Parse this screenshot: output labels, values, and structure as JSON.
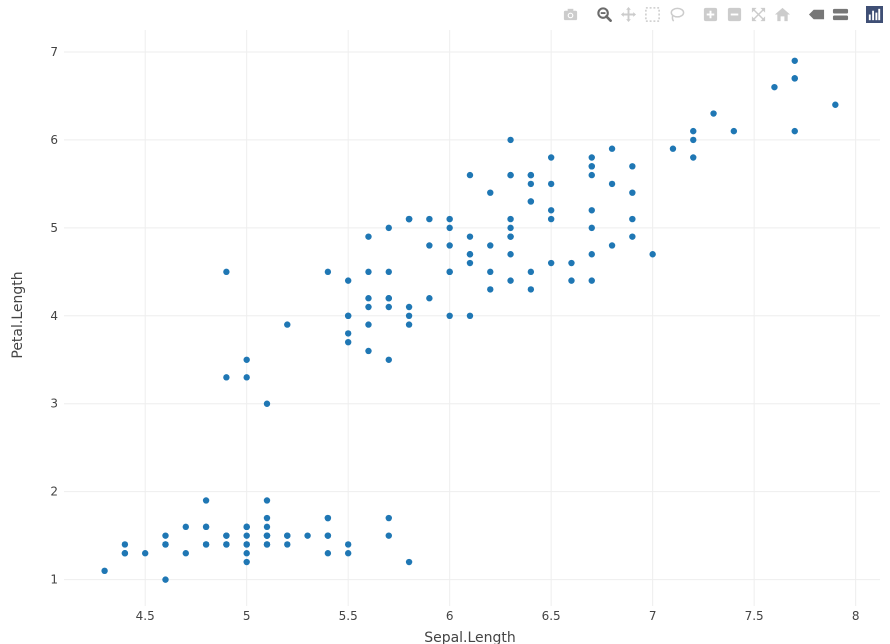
{
  "modebar": {
    "buttons": [
      {
        "name": "camera-icon",
        "color": "#cccccc"
      },
      {
        "name": "zoom-icon",
        "color": "#6b6b6b"
      },
      {
        "name": "pan-icon",
        "color": "#cccccc"
      },
      {
        "name": "box-select-icon",
        "color": "#cccccc"
      },
      {
        "name": "lasso-select-icon",
        "color": "#cccccc"
      },
      {
        "name": "zoom-in-icon",
        "color": "#cccccc"
      },
      {
        "name": "zoom-out-icon",
        "color": "#cccccc"
      },
      {
        "name": "autoscale-icon",
        "color": "#cccccc"
      },
      {
        "name": "reset-axes-icon",
        "color": "#cccccc"
      },
      {
        "name": "hover-closest-icon",
        "color": "#777777"
      },
      {
        "name": "hover-compare-icon",
        "color": "#777777"
      },
      {
        "name": "plotly-logo-icon",
        "color": "#3f4f75"
      }
    ]
  },
  "chart_data": {
    "type": "scatter",
    "xlabel": "Sepal.Length",
    "ylabel": "Petal.Length",
    "xlim": [
      4.1,
      8.12
    ],
    "ylim": [
      0.7,
      7.25
    ],
    "xticks": [
      4.5,
      5,
      5.5,
      6,
      6.5,
      7,
      7.5,
      8
    ],
    "yticks": [
      1,
      2,
      3,
      4,
      5,
      6,
      7
    ],
    "xtick_labels": [
      "4.5",
      "5",
      "5.5",
      "6",
      "6.5",
      "7",
      "7.5",
      "8"
    ],
    "ytick_labels": [
      "1",
      "2",
      "3",
      "4",
      "5",
      "6",
      "7"
    ],
    "grid": true,
    "marker_color": "#1f77b4",
    "x": [
      5.1,
      4.9,
      4.7,
      4.6,
      5.0,
      5.4,
      4.6,
      5.0,
      4.4,
      4.9,
      5.4,
      4.8,
      4.8,
      4.3,
      5.8,
      5.7,
      5.4,
      5.1,
      5.7,
      5.1,
      5.4,
      5.1,
      4.6,
      5.1,
      4.8,
      5.0,
      5.0,
      5.2,
      5.2,
      4.7,
      4.8,
      5.4,
      5.2,
      5.5,
      4.9,
      5.0,
      5.5,
      4.9,
      4.4,
      5.1,
      5.0,
      4.5,
      4.4,
      5.0,
      5.1,
      4.8,
      5.1,
      4.6,
      5.3,
      5.0,
      7.0,
      6.4,
      6.9,
      5.5,
      6.5,
      5.7,
      6.3,
      4.9,
      6.6,
      5.2,
      5.0,
      5.9,
      6.0,
      6.1,
      5.6,
      6.7,
      5.6,
      5.8,
      6.2,
      5.6,
      5.9,
      6.1,
      6.3,
      6.1,
      6.4,
      6.6,
      6.8,
      6.7,
      6.0,
      5.7,
      5.5,
      5.5,
      5.8,
      6.0,
      5.4,
      6.0,
      6.7,
      6.3,
      5.6,
      5.5,
      5.5,
      6.1,
      5.8,
      5.0,
      5.6,
      5.7,
      5.7,
      6.2,
      5.1,
      5.7,
      6.3,
      5.8,
      7.1,
      6.3,
      6.5,
      7.6,
      4.9,
      7.3,
      6.7,
      7.2,
      6.5,
      6.4,
      6.8,
      5.7,
      5.8,
      6.4,
      6.5,
      7.7,
      7.7,
      6.0,
      6.9,
      5.6,
      7.7,
      6.3,
      6.7,
      7.2,
      6.2,
      6.1,
      6.4,
      7.2,
      7.4,
      7.9,
      6.4,
      6.3,
      6.1,
      7.7,
      6.3,
      6.4,
      6.0,
      6.9,
      6.7,
      6.9,
      5.8,
      6.8,
      6.7,
      6.7,
      6.3,
      6.5,
      6.2,
      5.9
    ],
    "y": [
      1.4,
      1.4,
      1.3,
      1.5,
      1.4,
      1.7,
      1.4,
      1.5,
      1.4,
      1.5,
      1.5,
      1.6,
      1.4,
      1.1,
      1.2,
      1.5,
      1.3,
      1.4,
      1.7,
      1.5,
      1.7,
      1.5,
      1.0,
      1.7,
      1.9,
      1.6,
      1.6,
      1.5,
      1.4,
      1.6,
      1.6,
      1.5,
      1.5,
      1.4,
      1.5,
      1.2,
      1.3,
      1.4,
      1.3,
      1.5,
      1.3,
      1.3,
      1.3,
      1.6,
      1.9,
      1.4,
      1.6,
      1.4,
      1.5,
      1.4,
      4.7,
      4.5,
      4.9,
      4.0,
      4.6,
      4.5,
      4.7,
      3.3,
      4.6,
      3.9,
      3.5,
      4.2,
      4.0,
      4.7,
      3.6,
      4.4,
      4.5,
      4.1,
      4.5,
      3.9,
      4.8,
      4.0,
      4.9,
      4.7,
      4.3,
      4.4,
      4.8,
      5.0,
      4.5,
      3.5,
      3.8,
      3.7,
      3.9,
      5.1,
      4.5,
      4.5,
      4.7,
      4.4,
      4.1,
      4.0,
      4.4,
      4.6,
      4.0,
      3.3,
      4.2,
      4.2,
      4.2,
      4.3,
      3.0,
      4.1,
      6.0,
      5.1,
      5.9,
      5.6,
      5.8,
      6.6,
      4.5,
      6.3,
      5.8,
      6.1,
      5.1,
      5.3,
      5.5,
      5.0,
      5.1,
      5.3,
      5.5,
      6.7,
      6.9,
      5.0,
      5.7,
      4.9,
      6.7,
      4.9,
      5.7,
      6.0,
      4.8,
      4.9,
      5.6,
      5.8,
      6.1,
      6.4,
      5.6,
      5.1,
      5.6,
      6.1,
      5.6,
      5.5,
      4.8,
      5.4,
      5.6,
      5.1,
      5.1,
      5.9,
      5.7,
      5.2,
      5.0,
      5.2,
      5.4,
      5.1
    ]
  }
}
